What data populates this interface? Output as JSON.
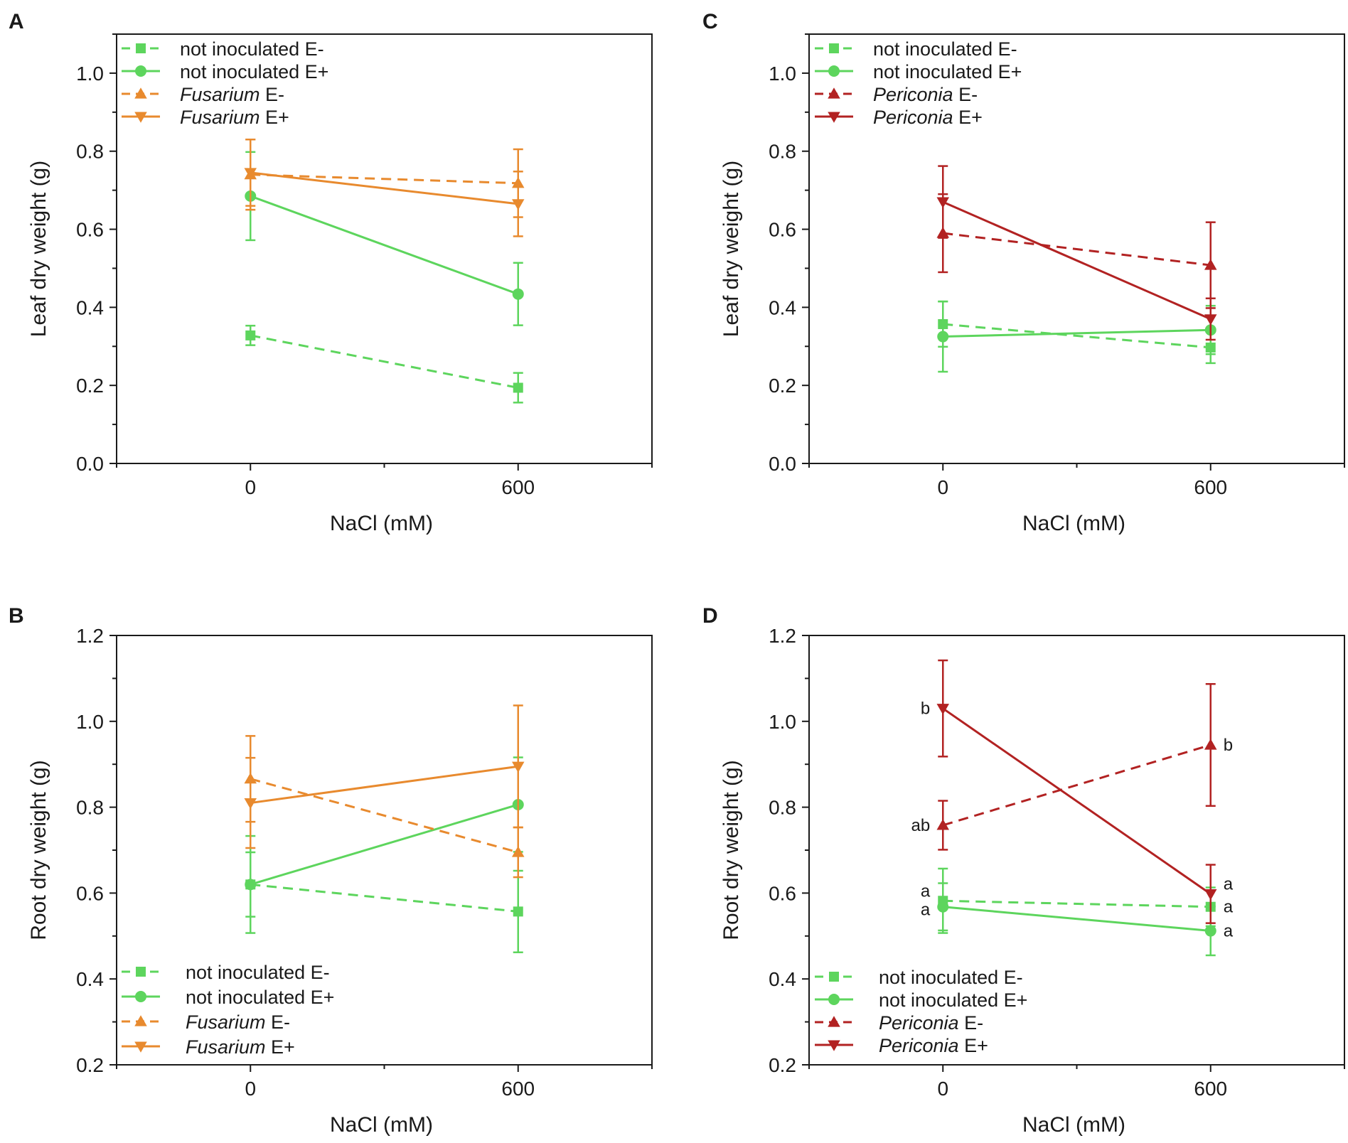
{
  "chart_data": [
    {
      "panel": "A",
      "type": "line",
      "xlabel": "NaCl (mM)",
      "ylabel": "Leaf dry weight (g)",
      "x": [
        0,
        600
      ],
      "xlim": [
        -300,
        900
      ],
      "ylim": [
        0,
        1.1
      ],
      "yticks": [
        0.0,
        0.2,
        0.4,
        0.6,
        0.8,
        1.0
      ],
      "ytick_labels": [
        "0.0",
        "0.2",
        "0.4",
        "0.6",
        "0.8",
        "1.0"
      ],
      "xtick_labels": [
        "0",
        "600"
      ],
      "legend": "top-left",
      "series": [
        {
          "name": "not inoculated E-",
          "italic": "",
          "rest": "not inoculated E-",
          "color": "#5dd55d",
          "dash": true,
          "marker": "square",
          "values": [
            0.328,
            0.194
          ],
          "errors": [
            0.025,
            0.038
          ],
          "labels": []
        },
        {
          "name": "not inoculated E+",
          "italic": "",
          "rest": "not inoculated E+",
          "color": "#5dd55d",
          "dash": false,
          "marker": "circle",
          "values": [
            0.685,
            0.434
          ],
          "errors": [
            0.113,
            0.08
          ],
          "labels": []
        },
        {
          "name": "Fusarium E-",
          "italic": "Fusarium",
          "rest": " E-",
          "color": "#e88a2e",
          "dash": true,
          "marker": "tri-up",
          "values": [
            0.74,
            0.718
          ],
          "errors": [
            0.09,
            0.087
          ],
          "labels": []
        },
        {
          "name": "Fusarium E+",
          "italic": "Fusarium",
          "rest": " E+",
          "color": "#e88a2e",
          "dash": false,
          "marker": "tri-down",
          "values": [
            0.745,
            0.665
          ],
          "errors": [
            0.085,
            0.083
          ],
          "labels": []
        }
      ]
    },
    {
      "panel": "B",
      "type": "line",
      "xlabel": "NaCl (mM)",
      "ylabel": "Root dry weight (g)",
      "x": [
        0,
        600
      ],
      "xlim": [
        -300,
        900
      ],
      "ylim": [
        0.2,
        1.2
      ],
      "yticks": [
        0.2,
        0.4,
        0.6,
        0.8,
        1.0,
        1.2
      ],
      "ytick_labels": [
        "0.2",
        "0.4",
        "0.6",
        "0.8",
        "1.0",
        "1.2"
      ],
      "xtick_labels": [
        "0",
        "600"
      ],
      "legend": "bottom-left",
      "series": [
        {
          "name": "not inoculated E-",
          "italic": "",
          "rest": "not inoculated E-",
          "color": "#5dd55d",
          "dash": true,
          "marker": "square",
          "values": [
            0.62,
            0.557
          ],
          "errors": [
            0.075,
            0.095
          ],
          "labels": []
        },
        {
          "name": "not inoculated E+",
          "italic": "",
          "rest": "not inoculated E+",
          "color": "#5dd55d",
          "dash": false,
          "marker": "circle",
          "values": [
            0.62,
            0.806
          ],
          "errors": [
            0.113,
            0.11
          ],
          "labels": []
        },
        {
          "name": "Fusarium E-",
          "italic": "Fusarium",
          "rest": " E-",
          "color": "#e88a2e",
          "dash": true,
          "marker": "tri-up",
          "values": [
            0.866,
            0.695
          ],
          "errors": [
            0.1,
            0.058
          ],
          "labels": []
        },
        {
          "name": "Fusarium E+",
          "italic": "Fusarium",
          "rest": " E+",
          "color": "#e88a2e",
          "dash": false,
          "marker": "tri-down",
          "values": [
            0.81,
            0.895
          ],
          "errors": [
            0.105,
            0.142
          ],
          "labels": []
        }
      ]
    },
    {
      "panel": "C",
      "type": "line",
      "xlabel": "NaCl (mM)",
      "ylabel": "Leaf dry weight (g)",
      "x": [
        0,
        600
      ],
      "xlim": [
        -300,
        900
      ],
      "ylim": [
        0,
        1.1
      ],
      "yticks": [
        0.0,
        0.2,
        0.4,
        0.6,
        0.8,
        1.0
      ],
      "ytick_labels": [
        "0.0",
        "0.2",
        "0.4",
        "0.6",
        "0.8",
        "1.0"
      ],
      "xtick_labels": [
        "0",
        "600"
      ],
      "legend": "top-left",
      "series": [
        {
          "name": "not inoculated E-",
          "italic": "",
          "rest": "not inoculated E-",
          "color": "#5dd55d",
          "dash": true,
          "marker": "square",
          "values": [
            0.357,
            0.297
          ],
          "errors": [
            0.058,
            0.04
          ],
          "labels": []
        },
        {
          "name": "not inoculated E+",
          "italic": "",
          "rest": "not inoculated E+",
          "color": "#5dd55d",
          "dash": false,
          "marker": "circle",
          "values": [
            0.325,
            0.342
          ],
          "errors": [
            0.09,
            0.062
          ],
          "labels": []
        },
        {
          "name": "Periconia E-",
          "italic": "Periconia",
          "rest": " E-",
          "color": "#b22222",
          "dash": true,
          "marker": "tri-up",
          "values": [
            0.59,
            0.508
          ],
          "errors": [
            0.1,
            0.11
          ],
          "labels": []
        },
        {
          "name": "Periconia E+",
          "italic": "Periconia",
          "rest": " E+",
          "color": "#b22222",
          "dash": false,
          "marker": "tri-down",
          "values": [
            0.67,
            0.37
          ],
          "errors": [
            0.092,
            0.053
          ],
          "labels": []
        }
      ]
    },
    {
      "panel": "D",
      "type": "line",
      "xlabel": "NaCl (mM)",
      "ylabel": "Root dry weight (g)",
      "x": [
        0,
        600
      ],
      "xlim": [
        -300,
        900
      ],
      "ylim": [
        0.2,
        1.2
      ],
      "yticks": [
        0.2,
        0.4,
        0.6,
        0.8,
        1.0,
        1.2
      ],
      "ytick_labels": [
        "0.2",
        "0.4",
        "0.6",
        "0.8",
        "1.0",
        "1.2"
      ],
      "xtick_labels": [
        "0",
        "600"
      ],
      "legend": "bottom-left",
      "series": [
        {
          "name": "not inoculated E-",
          "italic": "",
          "rest": "not inoculated E-",
          "color": "#5dd55d",
          "dash": true,
          "marker": "square",
          "values": [
            0.582,
            0.568
          ],
          "errors": [
            0.075,
            0.045
          ],
          "labels": [
            {
              "text": "a",
              "side": "left",
              "dy": -14
            },
            {
              "text": "a",
              "side": "right",
              "dy": 0
            }
          ]
        },
        {
          "name": "not inoculated E+",
          "italic": "",
          "rest": "not inoculated E+",
          "color": "#5dd55d",
          "dash": false,
          "marker": "circle",
          "values": [
            0.568,
            0.512
          ],
          "errors": [
            0.055,
            0.057
          ],
          "labels": [
            {
              "text": "a",
              "side": "left",
              "dy": 4
            },
            {
              "text": "a",
              "side": "right",
              "dy": 0
            }
          ]
        },
        {
          "name": "Periconia E-",
          "italic": "Periconia",
          "rest": " E-",
          "color": "#b22222",
          "dash": true,
          "marker": "tri-up",
          "values": [
            0.758,
            0.945
          ],
          "errors": [
            0.057,
            0.142
          ],
          "labels": [
            {
              "text": "ab",
              "side": "left",
              "dy": 0
            },
            {
              "text": "b",
              "side": "right",
              "dy": 0
            }
          ]
        },
        {
          "name": "Periconia E+",
          "italic": "Periconia",
          "rest": " E+",
          "color": "#b22222",
          "dash": false,
          "marker": "tri-down",
          "values": [
            1.03,
            0.598
          ],
          "errors": [
            0.112,
            0.068
          ],
          "labels": [
            {
              "text": "b",
              "side": "left",
              "dy": 0
            },
            {
              "text": "a",
              "side": "right",
              "dy": -14
            }
          ]
        }
      ]
    }
  ]
}
